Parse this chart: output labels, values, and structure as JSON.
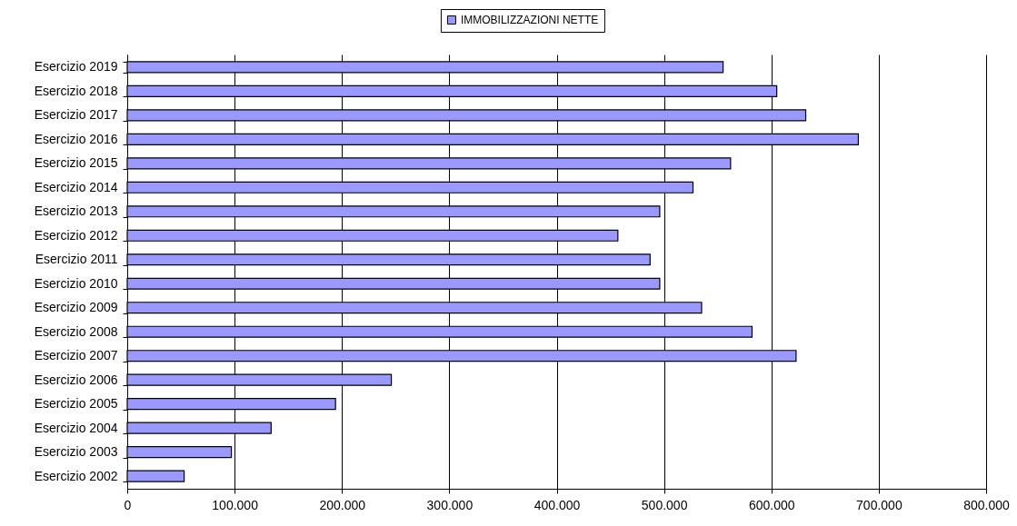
{
  "chart_data": {
    "type": "bar",
    "orientation": "horizontal",
    "categories": [
      "Esercizio 2019",
      "Esercizio 2018",
      "Esercizio 2017",
      "Esercizio 2016",
      "Esercizio 2015",
      "Esercizio 2014",
      "Esercizio 2013",
      "Esercizio 2012",
      "Esercizio 2011",
      "Esercizio 2010",
      "Esercizio 2009",
      "Esercizio 2008",
      "Esercizio 2007",
      "Esercizio 2006",
      "Esercizio 2005",
      "Esercizio 2004",
      "Esercizio 2003",
      "Esercizio 2002"
    ],
    "series": [
      {
        "name": "IMMOBILIZZAZIONI NETTE",
        "color": "#9999ff",
        "values": [
          555000,
          605000,
          632000,
          681000,
          562000,
          527000,
          496000,
          457000,
          487000,
          496000,
          535000,
          582000,
          623000,
          246000,
          194000,
          134000,
          97000,
          53000
        ]
      }
    ],
    "xlim": [
      0,
      800000
    ],
    "xticks": [
      {
        "value": 0,
        "label": "0"
      },
      {
        "value": 100000,
        "label": "100.000"
      },
      {
        "value": 200000,
        "label": "200.000"
      },
      {
        "value": 300000,
        "label": "300.000"
      },
      {
        "value": 400000,
        "label": "400.000"
      },
      {
        "value": 500000,
        "label": "500.000"
      },
      {
        "value": 600000,
        "label": "600.000"
      },
      {
        "value": 700000,
        "label": "700.000"
      },
      {
        "value": 800000,
        "label": "800.000"
      }
    ],
    "grid": "x",
    "legend": "top"
  }
}
